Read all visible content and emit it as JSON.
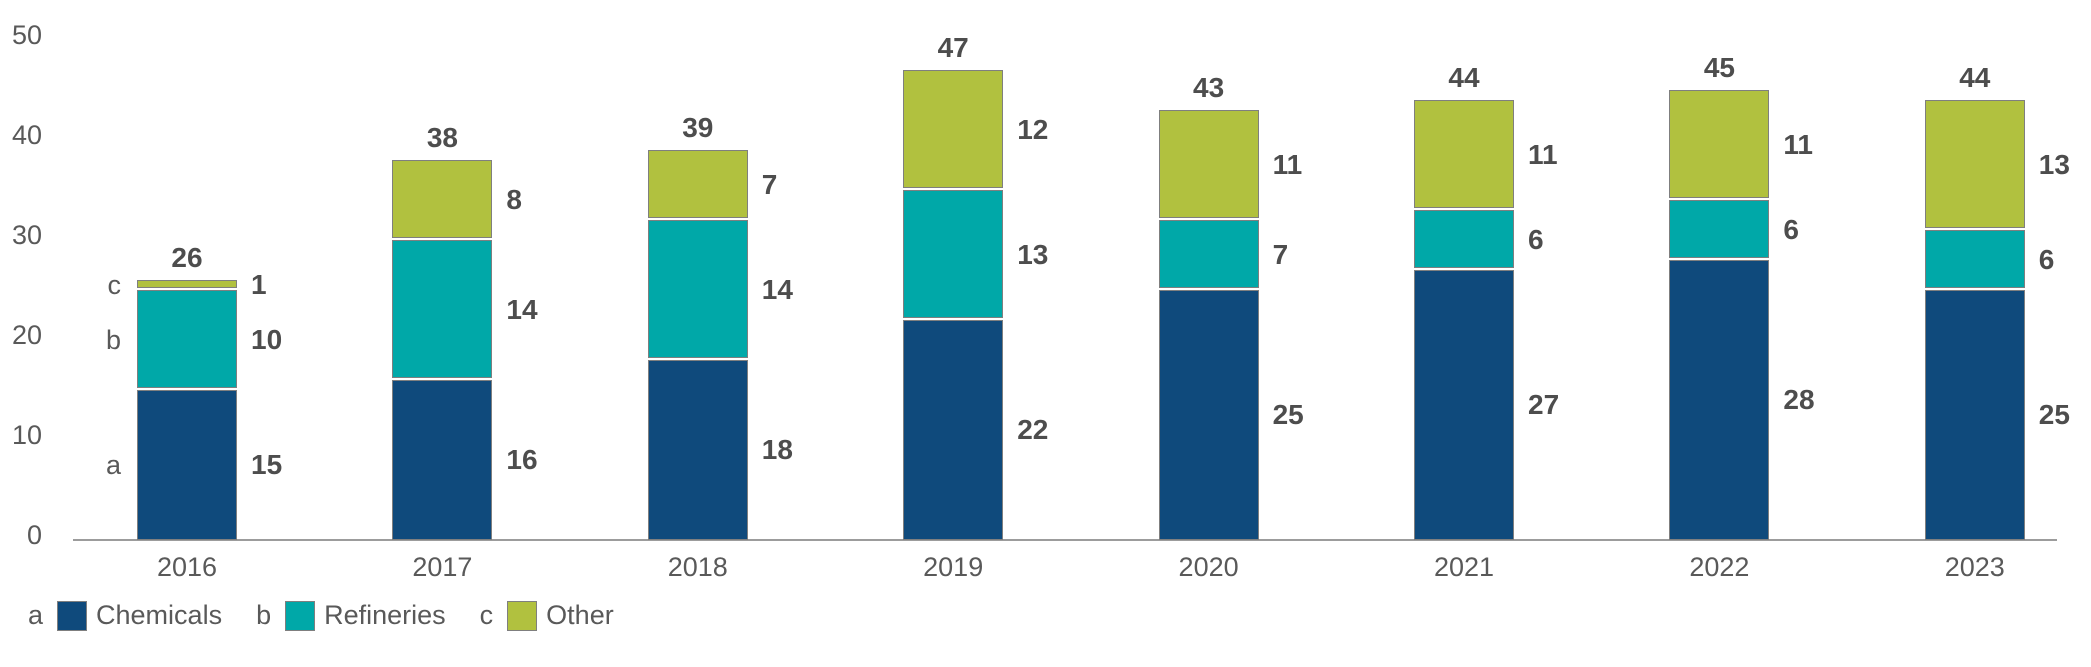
{
  "chart_data": {
    "type": "bar",
    "subtype": "stacked",
    "title": "",
    "xlabel": "",
    "ylabel": "",
    "categories": [
      "2016",
      "2017",
      "2018",
      "2019",
      "2020",
      "2021",
      "2022",
      "2023"
    ],
    "series": [
      {
        "key": "a",
        "name": "Chemicals",
        "color": "#0f4a7c",
        "values": [
          15,
          16,
          18,
          22,
          25,
          27,
          28,
          25
        ]
      },
      {
        "key": "b",
        "name": "Refineries",
        "color": "#00a8a8",
        "values": [
          10,
          14,
          14,
          13,
          7,
          6,
          6,
          6
        ]
      },
      {
        "key": "c",
        "name": "Other",
        "color": "#b1c13f",
        "values": [
          1,
          8,
          7,
          12,
          11,
          11,
          11,
          13
        ]
      }
    ],
    "totals": [
      26,
      38,
      39,
      47,
      43,
      44,
      45,
      44
    ],
    "y_ticks": [
      0,
      10,
      20,
      30,
      40,
      50
    ],
    "ylim": [
      0,
      50
    ],
    "grid": false,
    "legend_position": "bottom-left",
    "segment_key_labels_on_first_bar": true
  },
  "colors": {
    "chemicals": "#0f4a7c",
    "refineries": "#00a8a8",
    "other": "#b1c13f",
    "segment_border": "#7f7f7f",
    "axis_line": "#9c9c9c",
    "value_text": "#4d4d4d",
    "axis_text": "#595959"
  }
}
